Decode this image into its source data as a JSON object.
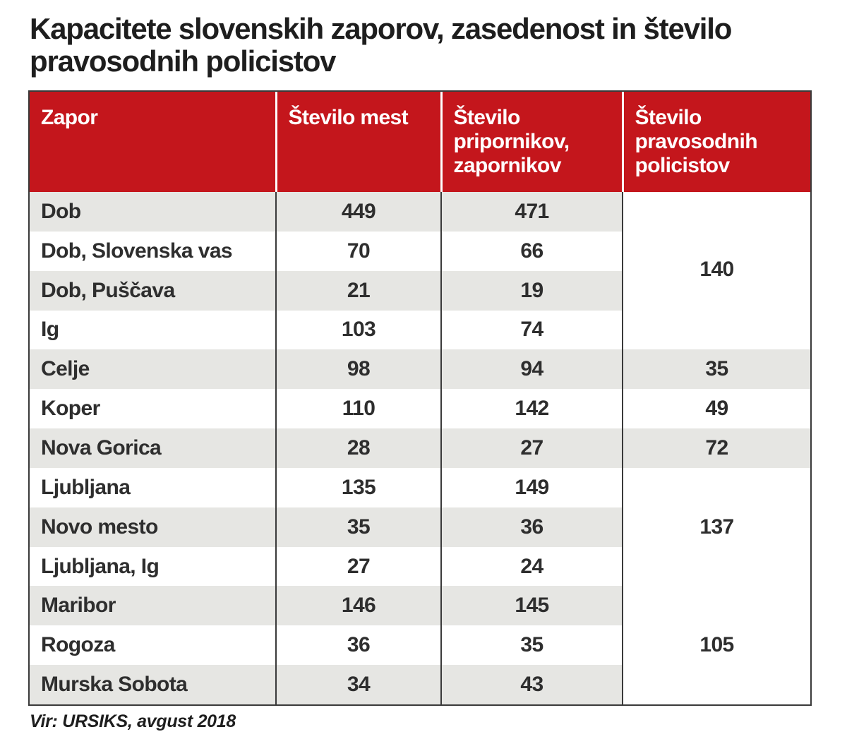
{
  "title": "Kapacitete slovenskih zaporov, zasedenost in število pravosodnih policistov",
  "source": "Vir: URSIKS, avgust 2018",
  "colors": {
    "header_bg": "#c4161c",
    "header_text": "#ffffff",
    "row_shade": "#e6e6e3",
    "text": "#2e2e2e"
  },
  "chart_data": {
    "type": "table",
    "title": "Kapacitete slovenskih zaporov, zasedenost in število pravosodnih policistov",
    "columns": [
      "Zapor",
      "Število mest",
      "Število pripornikov, zapornikov",
      "Število pravosodnih policistov"
    ],
    "rows": [
      {
        "zapor": "Dob",
        "mest": "449",
        "zaporniki": "471"
      },
      {
        "zapor": "Dob, Slovenska vas",
        "mest": "70",
        "zaporniki": "66"
      },
      {
        "zapor": "Dob, Puščava",
        "mest": "21",
        "zaporniki": "19"
      },
      {
        "zapor": "Ig",
        "mest": "103",
        "zaporniki": "74"
      },
      {
        "zapor": "Celje",
        "mest": "98",
        "zaporniki": "94"
      },
      {
        "zapor": "Koper",
        "mest": "110",
        "zaporniki": "142"
      },
      {
        "zapor": "Nova Gorica",
        "mest": "28",
        "zaporniki": "27"
      },
      {
        "zapor": "Ljubljana",
        "mest": "135",
        "zaporniki": "149"
      },
      {
        "zapor": "Novo mesto",
        "mest": "35",
        "zaporniki": "36"
      },
      {
        "zapor": "Ljubljana, Ig",
        "mest": "27",
        "zaporniki": "24"
      },
      {
        "zapor": "Maribor",
        "mest": "146",
        "zaporniki": "145"
      },
      {
        "zapor": "Rogoza",
        "mest": "36",
        "zaporniki": "35"
      },
      {
        "zapor": "Murska Sobota",
        "mest": "34",
        "zaporniki": "43"
      }
    ],
    "policisti_groups": [
      {
        "rows": [
          "Dob",
          "Dob, Slovenska vas",
          "Dob, Puščava",
          "Ig"
        ],
        "value": "140"
      },
      {
        "rows": [
          "Celje"
        ],
        "value": "35"
      },
      {
        "rows": [
          "Koper"
        ],
        "value": "49"
      },
      {
        "rows": [
          "Nova Gorica"
        ],
        "value": "72"
      },
      {
        "rows": [
          "Ljubljana",
          "Novo mesto",
          "Ljubljana, Ig"
        ],
        "value": "137"
      },
      {
        "rows": [
          "Maribor",
          "Rogoza",
          "Murska Sobota"
        ],
        "value": "105"
      }
    ]
  }
}
